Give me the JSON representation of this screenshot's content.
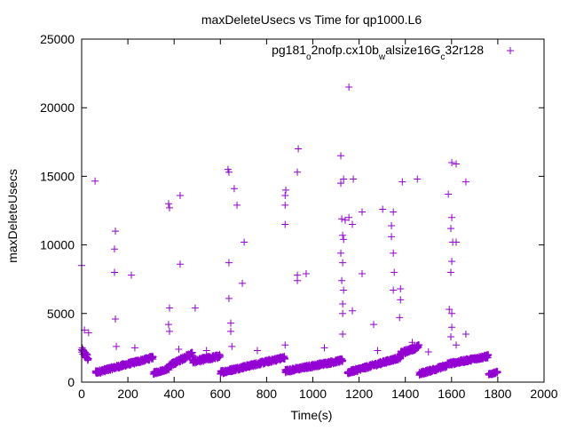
{
  "chart_data": {
    "type": "scatter",
    "title": "maxDeleteUsecs vs Time for qp1000.L6",
    "xlabel": "Time(s)",
    "ylabel": "maxDeleteUsecs",
    "xlim": [
      0,
      2000
    ],
    "ylim": [
      0,
      25000
    ],
    "xticks": [
      "0",
      "200",
      "400",
      "600",
      "800",
      "1000",
      "1200",
      "1400",
      "1600",
      "1800",
      "2000"
    ],
    "yticks": [
      "0",
      "5000",
      "10000",
      "15000",
      "20000",
      "25000"
    ],
    "grid": false,
    "legend_position": "top-right",
    "series": [
      {
        "name": "pg181_o2nofp.cx10b_walsize16G_c32r128",
        "name_parts": [
          {
            "t": "pg181",
            "sub": false
          },
          {
            "t": "o",
            "sub": true
          },
          {
            "t": "2nofp.cx10b",
            "sub": false
          },
          {
            "t": "w",
            "sub": true
          },
          {
            "t": "alsize16G",
            "sub": false
          },
          {
            "t": "c",
            "sub": true
          },
          {
            "t": "32r128",
            "sub": false
          }
        ],
        "color": "#9400d3",
        "marker": "+",
        "baseline_segments": [
          {
            "x": [
              0,
              30
            ],
            "y": [
              2300,
              1700
            ],
            "spread": 500
          },
          {
            "x": [
              60,
              310
            ],
            "y": [
              700,
              1800
            ],
            "spread": 250
          },
          {
            "x": [
              310,
              380
            ],
            "y": [
              650,
              1000
            ],
            "spread": 200
          },
          {
            "x": [
              380,
              480
            ],
            "y": [
              1200,
              2100
            ],
            "spread": 300
          },
          {
            "x": [
              480,
              600
            ],
            "y": [
              1500,
              1900
            ],
            "spread": 300
          },
          {
            "x": [
              600,
              880
            ],
            "y": [
              700,
              1800
            ],
            "spread": 250
          },
          {
            "x": [
              880,
              1130
            ],
            "y": [
              800,
              1600
            ],
            "spread": 250
          },
          {
            "x": [
              1150,
              1380
            ],
            "y": [
              700,
              1800
            ],
            "spread": 250
          },
          {
            "x": [
              1380,
              1460
            ],
            "y": [
              2100,
              2600
            ],
            "spread": 300
          },
          {
            "x": [
              1460,
              1580
            ],
            "y": [
              600,
              1200
            ],
            "spread": 250
          },
          {
            "x": [
              1580,
              1760
            ],
            "y": [
              1300,
              1900
            ],
            "spread": 250
          },
          {
            "x": [
              1760,
              1800
            ],
            "y": [
              550,
              750
            ],
            "spread": 150
          }
        ],
        "outliers": [
          [
            0,
            8500
          ],
          [
            12,
            3800
          ],
          [
            30,
            3600
          ],
          [
            58,
            14650
          ],
          [
            146,
            11000
          ],
          [
            142,
            9700
          ],
          [
            142,
            8000
          ],
          [
            146,
            4600
          ],
          [
            215,
            7800
          ],
          [
            376,
            13000
          ],
          [
            380,
            12700
          ],
          [
            380,
            5400
          ],
          [
            376,
            4200
          ],
          [
            380,
            3700
          ],
          [
            426,
            13600
          ],
          [
            426,
            8600
          ],
          [
            491,
            5400
          ],
          [
            633,
            15500
          ],
          [
            637,
            15300
          ],
          [
            637,
            8700
          ],
          [
            637,
            6100
          ],
          [
            645,
            4300
          ],
          [
            645,
            3700
          ],
          [
            660,
            14100
          ],
          [
            672,
            12900
          ],
          [
            703,
            10200
          ],
          [
            695,
            7200
          ],
          [
            880,
            13600
          ],
          [
            880,
            12900
          ],
          [
            880,
            11500
          ],
          [
            883,
            14000
          ],
          [
            880,
            2700
          ],
          [
            937,
            17000
          ],
          [
            933,
            15300
          ],
          [
            933,
            7800
          ],
          [
            933,
            7400
          ],
          [
            971,
            7900
          ],
          [
            1121,
            16500
          ],
          [
            1121,
            14500
          ],
          [
            1133,
            14800
          ],
          [
            1156,
            21500
          ],
          [
            1125,
            11900
          ],
          [
            1140,
            11800
          ],
          [
            1156,
            12000
          ],
          [
            1171,
            11500
          ],
          [
            1175,
            14800
          ],
          [
            1129,
            10700
          ],
          [
            1133,
            10400
          ],
          [
            1121,
            9400
          ],
          [
            1129,
            8700
          ],
          [
            1125,
            7400
          ],
          [
            1133,
            6700
          ],
          [
            1129,
            5700
          ],
          [
            1129,
            5000
          ],
          [
            1171,
            5200
          ],
          [
            1129,
            3500
          ],
          [
            1213,
            7900
          ],
          [
            1213,
            12400
          ],
          [
            1263,
            4200
          ],
          [
            1302,
            12600
          ],
          [
            1348,
            12400
          ],
          [
            1340,
            11400
          ],
          [
            1340,
            10600
          ],
          [
            1348,
            9400
          ],
          [
            1352,
            8000
          ],
          [
            1348,
            6700
          ],
          [
            1379,
            6800
          ],
          [
            1379,
            6000
          ],
          [
            1387,
            14600
          ],
          [
            1375,
            4700
          ],
          [
            1452,
            14800
          ],
          [
            1586,
            13700
          ],
          [
            1601,
            16000
          ],
          [
            1620,
            15900
          ],
          [
            1601,
            12000
          ],
          [
            1597,
            11200
          ],
          [
            1605,
            10200
          ],
          [
            1620,
            10200
          ],
          [
            1601,
            8800
          ],
          [
            1597,
            8000
          ],
          [
            1590,
            5300
          ],
          [
            1601,
            5000
          ],
          [
            1601,
            4000
          ],
          [
            1597,
            3300
          ],
          [
            1662,
            14600
          ],
          [
            1662,
            3500
          ],
          [
            150,
            2600
          ],
          [
            230,
            2500
          ],
          [
            420,
            2400
          ],
          [
            540,
            2300
          ],
          [
            650,
            2600
          ],
          [
            760,
            2300
          ],
          [
            1050,
            2500
          ],
          [
            1280,
            2300
          ],
          [
            1430,
            2900
          ],
          [
            1500,
            2200
          ],
          [
            1620,
            2700
          ]
        ]
      }
    ]
  }
}
